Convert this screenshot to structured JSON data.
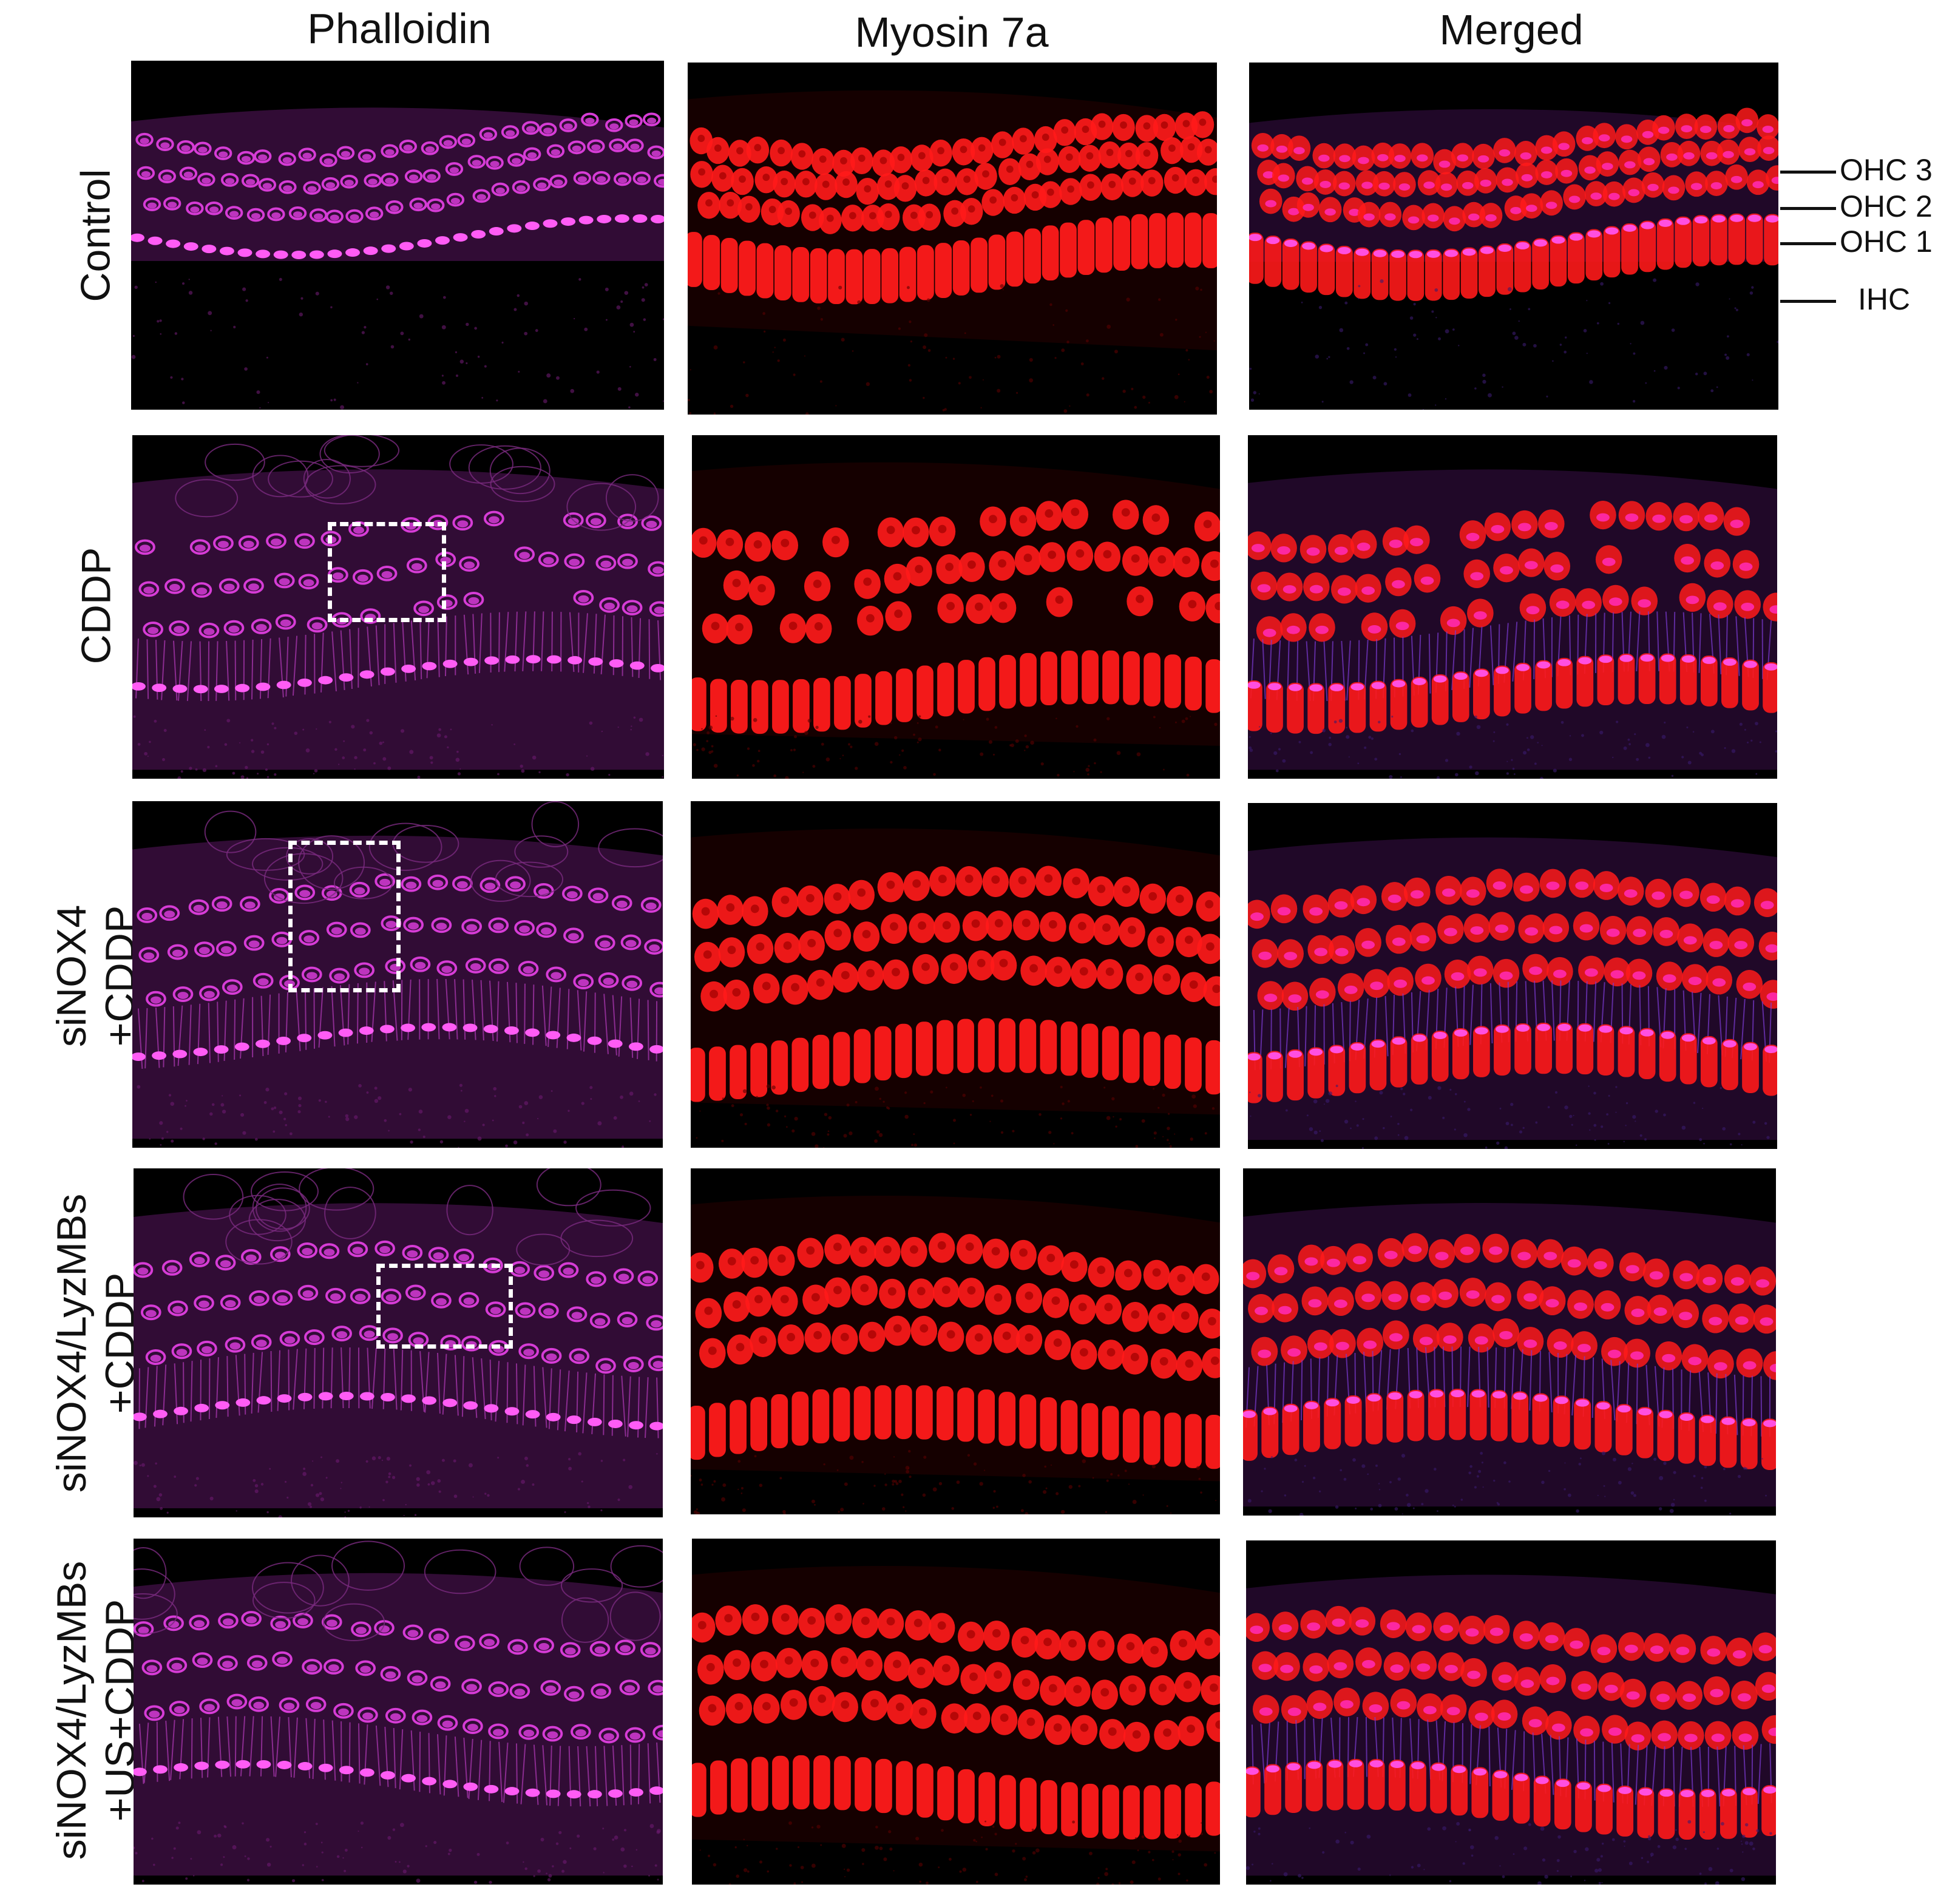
{
  "columns": [
    {
      "label": "Phalloidin"
    },
    {
      "label": "Myosin 7a"
    },
    {
      "label": "Merged"
    }
  ],
  "rows": [
    {
      "label_lines": [
        "Control"
      ]
    },
    {
      "label_lines": [
        "CDDP"
      ]
    },
    {
      "label_lines": [
        "siNOX4",
        "+CDDP"
      ]
    },
    {
      "label_lines": [
        "siNOX4/LyzMBs",
        "+CDDP"
      ]
    },
    {
      "label_lines": [
        "siNOX4/LyzMBs",
        "+US+CDDP"
      ]
    }
  ],
  "annotations": [
    {
      "label": "OHC 3"
    },
    {
      "label": "OHC 2"
    },
    {
      "label": "OHC 1"
    },
    {
      "label": "IHC"
    }
  ],
  "colors": {
    "phalloidin": "#d63cd6",
    "myosin": "#ff1a1a",
    "merged_overlap": "#ff2ab0",
    "background": "#000000"
  }
}
